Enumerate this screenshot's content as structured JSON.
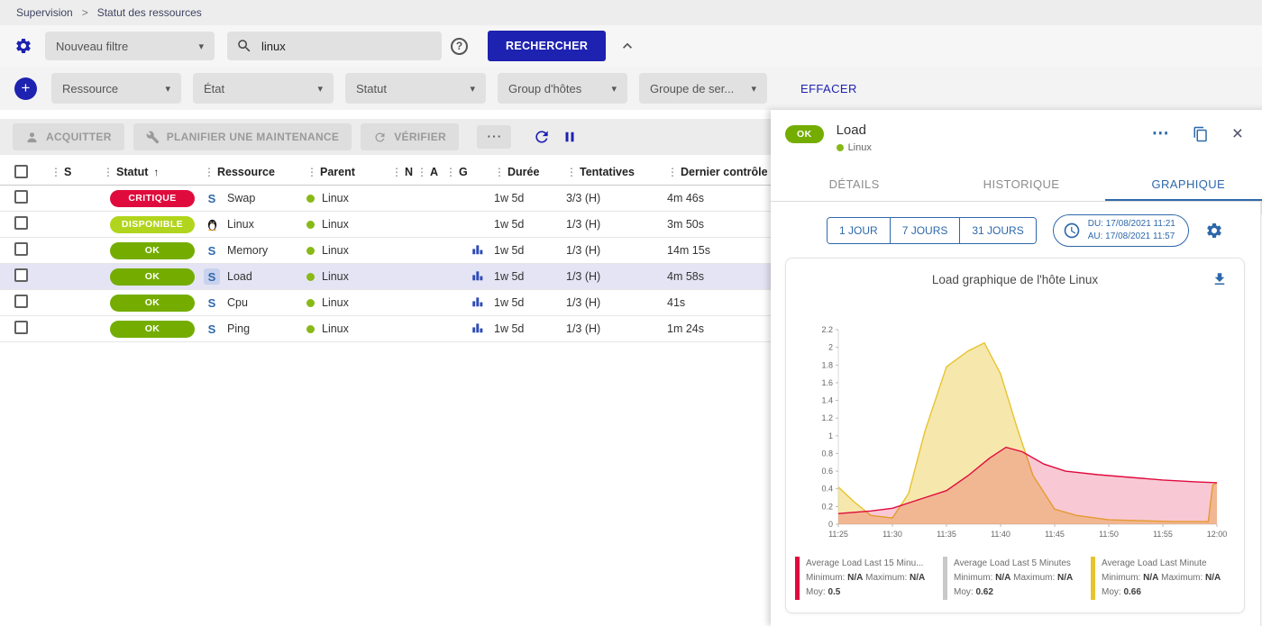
{
  "breadcrumb": {
    "items": [
      "Supervision",
      "Statut des ressources"
    ],
    "separator": ">"
  },
  "icons": {
    "caret_down": "▾",
    "drag_dots": "⋮",
    "sort_asc": "↑",
    "more": "⋯",
    "close": "×",
    "plus": "+",
    "help": "?"
  },
  "colors": {
    "primary": "#1e22b0",
    "accent_blue": "#2e68aa",
    "status_ok": "#74ad00",
    "status_up": "#b1d51d",
    "status_critical": "#e00b3d",
    "parent_dot": "#88b917",
    "selected_row": "#e4e4f4"
  },
  "filter_bar": {
    "saved_filter_label": "Nouveau filtre",
    "search_value": "linux",
    "search_button_label": "RECHERCHER"
  },
  "criteria_bar": {
    "dropdowns": [
      {
        "label": "Ressource"
      },
      {
        "label": "État"
      },
      {
        "label": "Statut"
      },
      {
        "label": "Group d'hôtes"
      },
      {
        "label": "Groupe de ser..."
      }
    ],
    "clear_label": "EFFACER"
  },
  "toolbar": {
    "acknowledge_label": "ACQUITTER",
    "downtime_label": "PLANIFIER UNE MAINTENANCE",
    "check_label": "VÉRIFIER"
  },
  "table": {
    "headers": [
      "S",
      "Statut",
      "Ressource",
      "Parent",
      "N",
      "A",
      "G",
      "Durée",
      "Tentatives",
      "Dernier contrôle"
    ],
    "sort_column": "Statut",
    "rows": [
      {
        "status": "CRITIQUE",
        "status_color": "#e00b3d",
        "resource_type": "service",
        "resource": "Swap",
        "parent": "Linux",
        "has_graph": false,
        "duration": "1w 5d",
        "tries": "3/3 (H)",
        "last_check": "4m 46s",
        "selected": false
      },
      {
        "status": "DISPONIBLE",
        "status_color": "#b1d51d",
        "resource_type": "host",
        "resource": "Linux",
        "parent": "Linux",
        "has_graph": false,
        "duration": "1w 5d",
        "tries": "1/3 (H)",
        "last_check": "3m 50s",
        "selected": false
      },
      {
        "status": "OK",
        "status_color": "#74ad00",
        "resource_type": "service",
        "resource": "Memory",
        "parent": "Linux",
        "has_graph": true,
        "duration": "1w 5d",
        "tries": "1/3 (H)",
        "last_check": "14m 15s",
        "selected": false
      },
      {
        "status": "OK",
        "status_color": "#74ad00",
        "resource_type": "service",
        "resource": "Load",
        "parent": "Linux",
        "has_graph": true,
        "duration": "1w 5d",
        "tries": "1/3 (H)",
        "last_check": "4m 58s",
        "selected": true
      },
      {
        "status": "OK",
        "status_color": "#74ad00",
        "resource_type": "service",
        "resource": "Cpu",
        "parent": "Linux",
        "has_graph": true,
        "duration": "1w 5d",
        "tries": "1/3 (H)",
        "last_check": "41s",
        "selected": false
      },
      {
        "status": "OK",
        "status_color": "#74ad00",
        "resource_type": "service",
        "resource": "Ping",
        "parent": "Linux",
        "has_graph": true,
        "duration": "1w 5d",
        "tries": "1/3 (H)",
        "last_check": "1m 24s",
        "selected": false
      }
    ]
  },
  "panel": {
    "status_badge": "OK",
    "status_color": "#74ad00",
    "title": "Load",
    "parent_name": "Linux",
    "tabs": [
      {
        "label": "DÉTAILS"
      },
      {
        "label": "HISTORIQUE"
      },
      {
        "label": "GRAPHIQUE"
      }
    ],
    "active_tab": "GRAPHIQUE",
    "periods": [
      {
        "label": "1 JOUR"
      },
      {
        "label": "7 JOURS"
      },
      {
        "label": "31 JOURS"
      }
    ],
    "date_from": "DU: 17/08/2021 11:21",
    "date_to": "AU: 17/08/2021 11:57"
  },
  "chart_data": {
    "type": "area",
    "title": "Load graphique de l'hôte Linux",
    "x_tick_labels": [
      "11:25",
      "11:30",
      "11:35",
      "11:40",
      "11:45",
      "11:50",
      "11:55",
      "12:00"
    ],
    "x_range_minutes": 35,
    "x_tick_interval_minutes": 5,
    "ylim": [
      0,
      2.2
    ],
    "y_tick_step": 0.2,
    "grid": false,
    "legend_position": "bottom",
    "legend_labels": {
      "min": "Minimum:",
      "max": "Maximum:",
      "avg": "Moy:"
    },
    "series": [
      {
        "name": "Average Load Last 15 Minu...",
        "color": "#e00b3d",
        "fill": "rgba(224,11,61,0.22)",
        "min": "N/A",
        "max": "N/A",
        "avg": "0.5",
        "points": [
          [
            0,
            0.12
          ],
          [
            3,
            0.15
          ],
          [
            5,
            0.18
          ],
          [
            8,
            0.3
          ],
          [
            10,
            0.38
          ],
          [
            12,
            0.55
          ],
          [
            14,
            0.75
          ],
          [
            15.5,
            0.87
          ],
          [
            17,
            0.82
          ],
          [
            19,
            0.68
          ],
          [
            21,
            0.6
          ],
          [
            24,
            0.56
          ],
          [
            27,
            0.53
          ],
          [
            30,
            0.5
          ],
          [
            33,
            0.48
          ],
          [
            35,
            0.47
          ]
        ]
      },
      {
        "name": "Average Load Last 5 Minutes",
        "color": "#c9c9c9",
        "fill": "rgba(201,201,201,0.3)",
        "min": "N/A",
        "max": "N/A",
        "avg": "0.62",
        "points": null
      },
      {
        "name": "Average Load Last Minute",
        "color": "#e7c32f",
        "fill": "rgba(238,210,90,0.5)",
        "min": "N/A",
        "max": "N/A",
        "avg": "0.66",
        "points": [
          [
            0,
            0.42
          ],
          [
            1.5,
            0.25
          ],
          [
            3,
            0.1
          ],
          [
            5,
            0.07
          ],
          [
            6.5,
            0.35
          ],
          [
            8,
            1.05
          ],
          [
            10,
            1.78
          ],
          [
            12,
            1.96
          ],
          [
            13.5,
            2.05
          ],
          [
            15,
            1.7
          ],
          [
            16.5,
            1.1
          ],
          [
            18,
            0.55
          ],
          [
            20,
            0.17
          ],
          [
            22,
            0.1
          ],
          [
            25,
            0.05
          ],
          [
            28,
            0.04
          ],
          [
            31,
            0.03
          ],
          [
            34.2,
            0.03
          ],
          [
            34.6,
            0.44
          ],
          [
            35,
            0.47
          ]
        ]
      }
    ]
  }
}
